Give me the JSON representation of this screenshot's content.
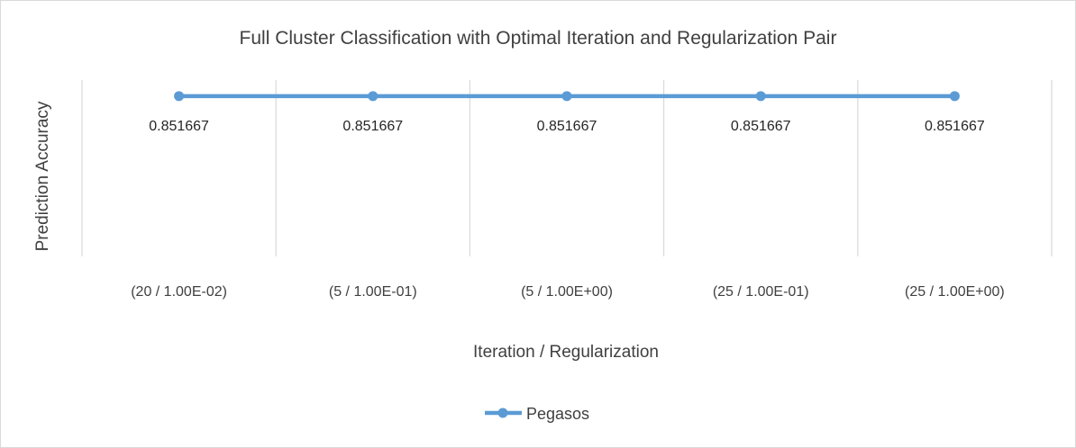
{
  "chart_data": {
    "type": "line",
    "title": "Full Cluster Classification with Optimal Iteration and Regularization Pair",
    "xlabel": "Iteration / Regularization",
    "ylabel": "Prediction Accuracy",
    "categories": [
      "(20 / 1.00E-02)",
      "(5 / 1.00E-01)",
      "(5 / 1.00E+00)",
      "(25 / 1.00E-01)",
      "(25 / 1.00E+00)"
    ],
    "series": [
      {
        "name": "Pegasos",
        "values": [
          0.851667,
          0.851667,
          0.851667,
          0.851667,
          0.851667
        ],
        "data_labels": [
          "0.851667",
          "0.851667",
          "0.851667",
          "0.851667",
          "0.851667"
        ],
        "color": "#5b9bd5"
      }
    ],
    "grid": true,
    "gridlines": "vertical",
    "legend": "bottom"
  }
}
